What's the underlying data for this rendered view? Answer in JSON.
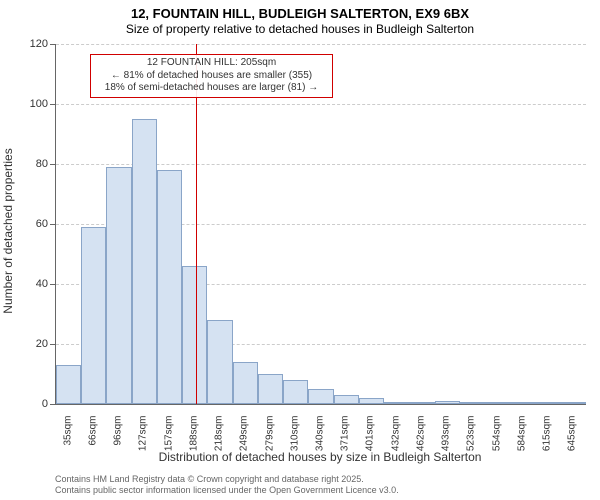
{
  "chart": {
    "type": "histogram",
    "title_line1": "12, FOUNTAIN HILL, BUDLEIGH SALTERTON, EX9 6BX",
    "title_line2": "Size of property relative to detached houses in Budleigh Salterton",
    "x_axis_title": "Distribution of detached houses by size in Budleigh Salterton",
    "y_axis_title": "Number of detached properties",
    "background_color": "#ffffff",
    "bar_fill": "#d5e2f2",
    "bar_border": "#8aa5c8",
    "grid_color": "#cccccc",
    "axis_color": "#666666",
    "ref_line_color": "#d00000",
    "title_fontsize": 13,
    "subtitle_fontsize": 12,
    "axis_label_fontsize": 12,
    "tick_fontsize": 11,
    "ylim": [
      0,
      120
    ],
    "ytick_step": 20,
    "yticks": [
      0,
      20,
      40,
      60,
      80,
      100,
      120
    ],
    "categories": [
      "35sqm",
      "66sqm",
      "96sqm",
      "127sqm",
      "157sqm",
      "188sqm",
      "218sqm",
      "249sqm",
      "279sqm",
      "310sqm",
      "340sqm",
      "371sqm",
      "401sqm",
      "432sqm",
      "462sqm",
      "493sqm",
      "523sqm",
      "554sqm",
      "584sqm",
      "615sqm",
      "645sqm"
    ],
    "values": [
      13,
      59,
      79,
      95,
      78,
      46,
      28,
      14,
      10,
      8,
      5,
      3,
      2,
      0,
      0,
      1,
      0,
      0,
      0,
      0,
      0
    ],
    "ref_line_category_index": 5.55,
    "ref_line_x_sqm": 205,
    "annotation": {
      "line1": "12 FOUNTAIN HILL: 205sqm",
      "line2": "← 81% of detached houses are smaller (355)",
      "line3": "18% of semi-detached houses are larger (81) →"
    },
    "footer_line1": "Contains HM Land Registry data © Crown copyright and database right 2025.",
    "footer_line2": "Contains public sector information licensed under the Open Government Licence v3.0."
  }
}
